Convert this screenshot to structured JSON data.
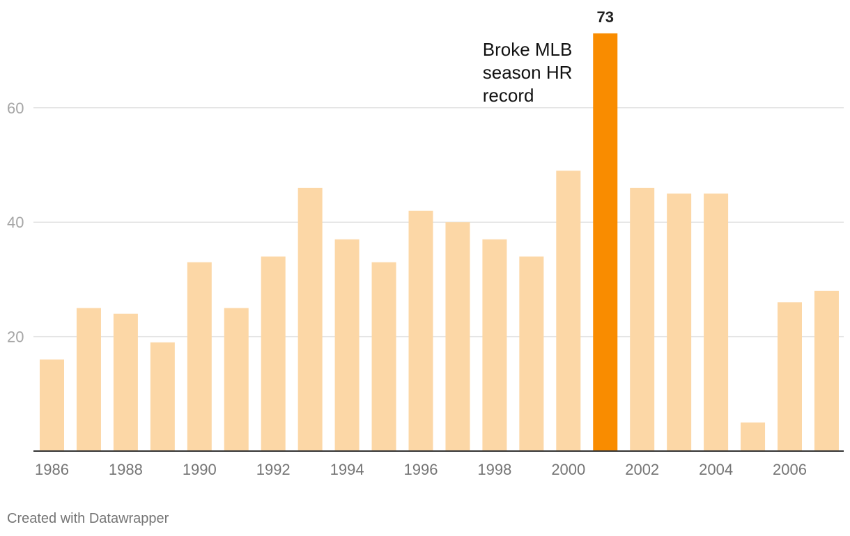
{
  "chart_data": {
    "type": "bar",
    "categories": [
      "1986",
      "1987",
      "1988",
      "1989",
      "1990",
      "1991",
      "1992",
      "1993",
      "1994",
      "1995",
      "1996",
      "1997",
      "1998",
      "1999",
      "2000",
      "2001",
      "2002",
      "2003",
      "2004",
      "2005",
      "2006",
      "2007"
    ],
    "values": [
      16,
      25,
      24,
      19,
      33,
      25,
      34,
      46,
      37,
      33,
      42,
      40,
      37,
      34,
      49,
      73,
      46,
      45,
      45,
      5,
      26,
      28
    ],
    "xtick_labels": [
      "1986",
      "1988",
      "1990",
      "1992",
      "1994",
      "1996",
      "1998",
      "2000",
      "2002",
      "2004",
      "2006"
    ],
    "yticks": [
      20,
      40,
      60
    ],
    "ylim": [
      0,
      73
    ],
    "grid": true,
    "highlight": {
      "category": "2001",
      "value_label": "73",
      "annotation": [
        "Broke MLB",
        "season HR",
        "record"
      ]
    },
    "colors": {
      "bar": "#fcd7a6",
      "highlight": "#f98c00",
      "grid": "#e3e3e3",
      "baseline": "#333333"
    }
  },
  "footer": {
    "credit": "Created with Datawrapper"
  }
}
